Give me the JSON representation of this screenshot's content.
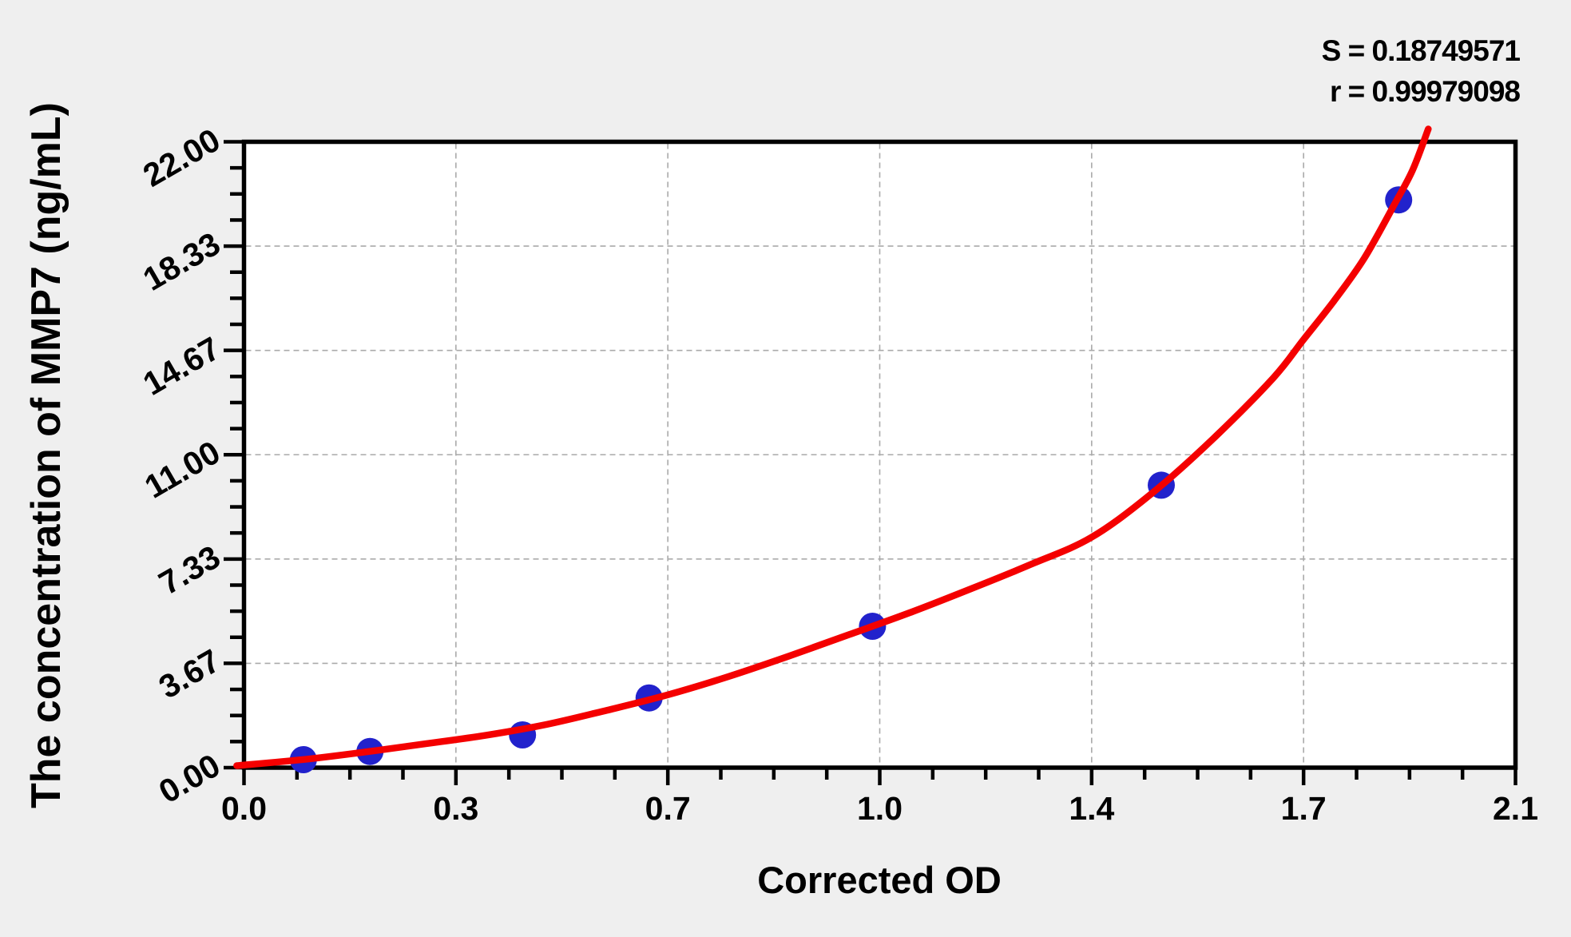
{
  "chart_data": {
    "type": "scatter",
    "title": "",
    "xlabel": "Corrected OD",
    "ylabel": "The concentration of MMP7 (ng/mL)",
    "xlim": [
      0,
      2.1
    ],
    "ylim": [
      0,
      22
    ],
    "x_major_ticks": [
      0,
      0.35,
      0.7,
      1.05,
      1.4,
      1.75,
      2.1
    ],
    "x_tick_labels": [
      "0.0",
      "0.3",
      "0.7",
      "1.0",
      "1.4",
      "1.7",
      "2.1"
    ],
    "y_major_ticks": [
      0,
      3.6667,
      7.3333,
      11,
      14.6667,
      18.3333,
      22
    ],
    "y_tick_labels": [
      "0.00",
      "3.67",
      "7.33",
      "11.00",
      "14.67",
      "18.33",
      "22.00"
    ],
    "x_minor_divisions": 4,
    "y_minor_divisions": 4,
    "grid": true,
    "legend": "none",
    "stats": {
      "s_line": "S = 0.18749571",
      "r_line": "r = 0.99979098"
    },
    "series": [
      {
        "name": "standard-points",
        "type": "scatter",
        "color": "#2222cc",
        "marker_radius": 17,
        "points": [
          [
            0.098,
            0.28
          ],
          [
            0.208,
            0.57
          ],
          [
            0.46,
            1.15
          ],
          [
            0.669,
            2.45
          ],
          [
            1.038,
            4.97
          ],
          [
            1.515,
            9.93
          ],
          [
            1.907,
            19.96
          ]
        ]
      },
      {
        "name": "fitted-curve",
        "type": "line",
        "color": "#f40000",
        "stroke_width": 8.5,
        "points": [
          [
            -0.012,
            0.07
          ],
          [
            0.1,
            0.29
          ],
          [
            0.2,
            0.55
          ],
          [
            0.3,
            0.84
          ],
          [
            0.4,
            1.14
          ],
          [
            0.5,
            1.52
          ],
          [
            0.6,
            2.02
          ],
          [
            0.7,
            2.56
          ],
          [
            0.8,
            3.2
          ],
          [
            0.9,
            3.92
          ],
          [
            1.0,
            4.68
          ],
          [
            1.1,
            5.45
          ],
          [
            1.2,
            6.28
          ],
          [
            1.3,
            7.15
          ],
          [
            1.4,
            8.1
          ],
          [
            1.5,
            9.65
          ],
          [
            1.6,
            11.55
          ],
          [
            1.7,
            13.7
          ],
          [
            1.75,
            15.05
          ],
          [
            1.8,
            16.4
          ],
          [
            1.85,
            17.9
          ],
          [
            1.9,
            19.8
          ],
          [
            1.93,
            21.0
          ],
          [
            1.956,
            22.45
          ]
        ]
      }
    ]
  },
  "colors": {
    "background": "#efefef",
    "plot_background": "#ffffff",
    "axis": "#000000",
    "grid": "#aaaaaa",
    "curve": "#f40000",
    "points": "#2222cc",
    "text": "#000000"
  }
}
